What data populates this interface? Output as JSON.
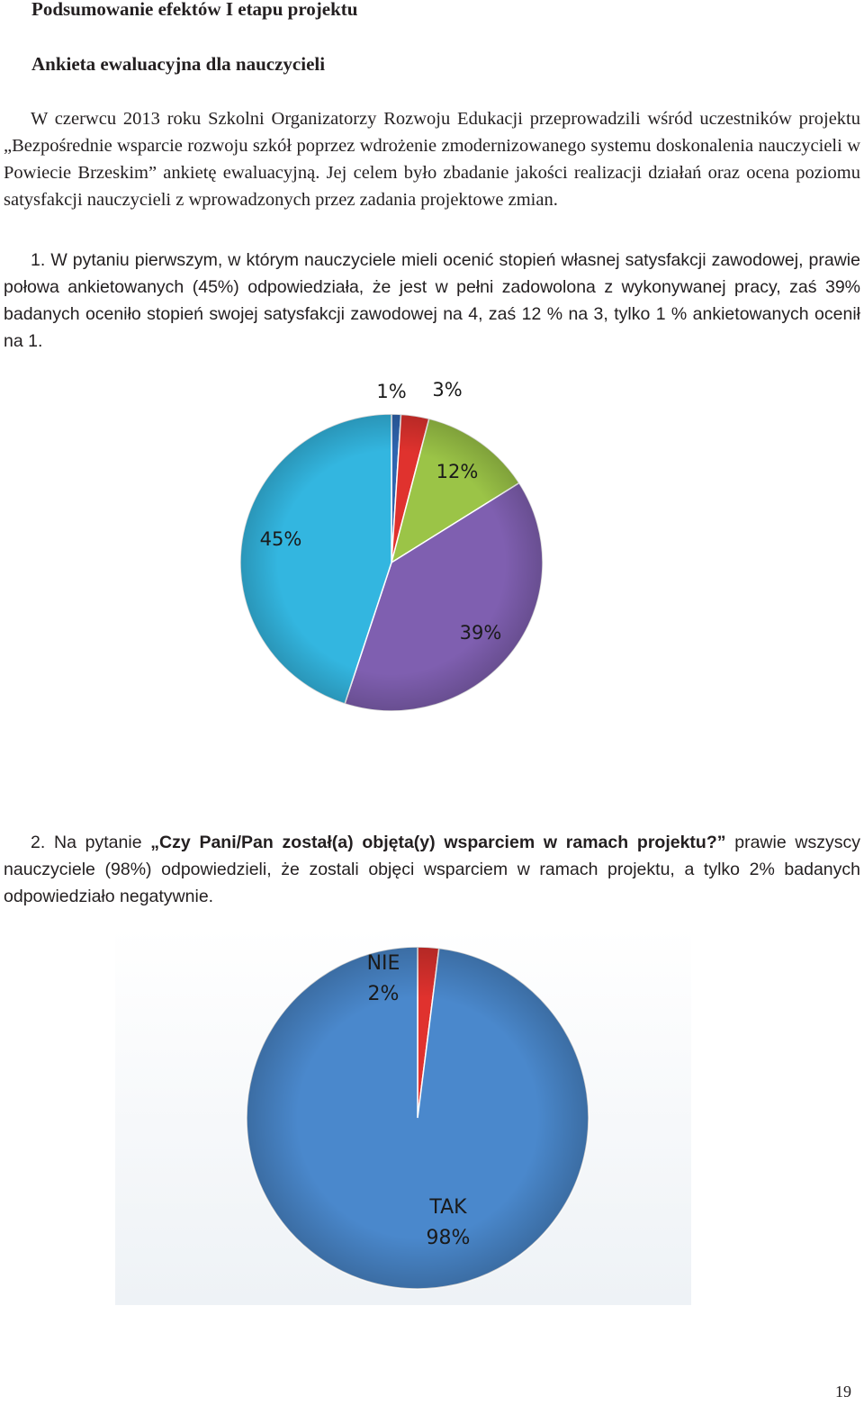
{
  "heading": "Podsumowanie efektów I etapu projektu",
  "subheading": "Ankieta ewaluacyjna dla nauczycieli",
  "para1": "W czerwcu 2013 roku Szkolni Organizatorzy Rozwoju Edukacji przeprowadzili wśród uczestników projektu „Bezpośrednie wsparcie rozwoju szkół poprzez wdrożenie zmodernizowanego systemu doskonalenia nauczycieli w Powiecie Brzeskim” ankietę ewaluacyjną. Jej celem było zbadanie jakości realizacji działań oraz ocena poziomu satysfakcji nauczycieli z wprowadzonych przez zadania projektowe zmian.",
  "para2": "1. W pytaniu pierwszym, w którym nauczyciele mieli ocenić stopień własnej satysfakcji zawodowej, prawie połowa ankietowanych (45%) odpowiedziała, że jest w pełni zadowolona z wykonywanej pracy, zaś 39% badanych oceniło stopień swojej satysfakcji zawodowej na 4, zaś 12 % na 3, tylko 1 % ankietowanych ocenił na 1.",
  "para3": {
    "lead": "2. Na pytanie ",
    "question": "„Czy Pani/Pan został(a) objęta(y) wsparciem w ramach projektu?",
    "close_quote": "”",
    "rest": " prawie wszyscy nauczyciele (98%) odpowiedzieli, że zostali objęci wsparciem w ramach projektu, a tylko 2% badanych odpowiedziało negatywnie."
  },
  "chart_data": [
    {
      "type": "pie",
      "slices": [
        {
          "label": "1%",
          "value": 1,
          "color": "#2f65b0"
        },
        {
          "label": "3%",
          "value": 3,
          "color": "#e0322e"
        },
        {
          "label": "12%",
          "value": 12,
          "color": "#9bc447"
        },
        {
          "label": "39%",
          "value": 39,
          "color": "#7f5fb0"
        },
        {
          "label": "45%",
          "value": 45,
          "color": "#33b6e0"
        }
      ]
    },
    {
      "type": "pie",
      "slices": [
        {
          "name": "NIE",
          "label": "2%",
          "value": 2,
          "color": "#e0322e"
        },
        {
          "name": "TAK",
          "label": "98%",
          "value": 98,
          "color": "#4a88cc"
        }
      ]
    }
  ],
  "page_number": "19"
}
